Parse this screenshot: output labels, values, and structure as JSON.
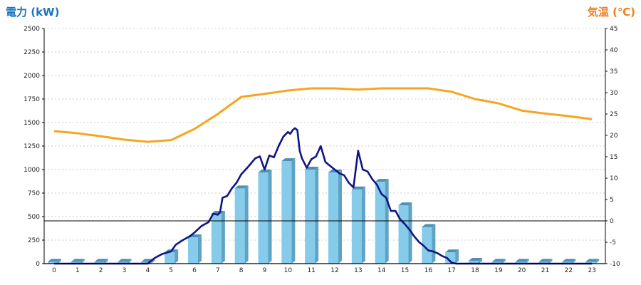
{
  "chart_data": {
    "type": "bar+line",
    "left_axis_title": "電力 (kW)",
    "right_axis_title": "気温 (℃)",
    "title_colors": {
      "left": "#1a75bb",
      "right": "#ef7d1a"
    },
    "x": [
      "0",
      "1",
      "2",
      "3",
      "4",
      "5",
      "6",
      "7",
      "8",
      "9",
      "10",
      "11",
      "12",
      "13",
      "14",
      "15",
      "16",
      "17",
      "18",
      "19",
      "20",
      "21",
      "22",
      "23"
    ],
    "left_ylim": [
      0,
      2500
    ],
    "left_ticks": [
      "0",
      "250",
      "500",
      "750",
      "1000",
      "1250",
      "1500",
      "1750",
      "2000",
      "2250",
      "2500"
    ],
    "right_ylim": [
      -10,
      45
    ],
    "right_ticks": [
      "-10",
      "-5",
      "0",
      "5",
      "10",
      "15",
      "20",
      "25",
      "30",
      "35",
      "40",
      "45"
    ],
    "grid": true,
    "series": [
      {
        "kind": "bar",
        "axis": "left",
        "color": "#86cbea",
        "values": [
          20,
          20,
          20,
          20,
          20,
          120,
          280,
          530,
          800,
          970,
          1090,
          1000,
          970,
          790,
          870,
          620,
          390,
          120,
          30,
          20,
          20,
          20,
          20,
          20
        ]
      },
      {
        "kind": "line",
        "axis": "left",
        "color": "#101585",
        "x": [
          0,
          1,
          2,
          3,
          4,
          4.3,
          4.6,
          5,
          5.2,
          5.5,
          5.8,
          6,
          6.3,
          6.6,
          6.8,
          7,
          7.1,
          7.2,
          7.4,
          7.6,
          7.8,
          8,
          8.3,
          8.6,
          8.8,
          9,
          9.2,
          9.4,
          9.6,
          9.8,
          10,
          10.1,
          10.2,
          10.3,
          10.4,
          10.5,
          10.6,
          10.8,
          11,
          11.2,
          11.4,
          11.6,
          11.8,
          12,
          12.2,
          12.4,
          12.6,
          12.8,
          13,
          13.2,
          13.4,
          13.6,
          13.8,
          14,
          14.2,
          14.4,
          14.6,
          14.8,
          15,
          15.2,
          15.4,
          15.6,
          15.8,
          16,
          16.2,
          16.4,
          16.6,
          16.8,
          17,
          17.2,
          17.4,
          17.6,
          18,
          19,
          20,
          21,
          22,
          23
        ],
        "values": [
          0,
          0,
          0,
          0,
          0,
          60,
          100,
          130,
          200,
          250,
          290,
          330,
          400,
          440,
          530,
          520,
          550,
          700,
          720,
          800,
          860,
          950,
          1030,
          1120,
          1140,
          1000,
          1150,
          1130,
          1250,
          1350,
          1400,
          1380,
          1420,
          1440,
          1420,
          1200,
          1120,
          1020,
          1110,
          1140,
          1250,
          1080,
          1040,
          1000,
          960,
          940,
          860,
          810,
          1200,
          1000,
          980,
          900,
          840,
          740,
          700,
          560,
          560,
          470,
          420,
          360,
          290,
          230,
          190,
          140,
          130,
          110,
          80,
          60,
          10,
          0,
          0,
          0,
          0,
          0,
          0,
          0,
          0,
          0
        ]
      },
      {
        "kind": "line",
        "axis": "right",
        "color": "#f7a520",
        "values": [
          21,
          20.5,
          19.8,
          19,
          18.5,
          18.9,
          21.5,
          25,
          29,
          29.7,
          30.5,
          31,
          31,
          30.7,
          31,
          31,
          31,
          30.2,
          28.5,
          27.5,
          25.8,
          25.1,
          24.5,
          23.8
        ]
      }
    ],
    "reference_line": {
      "axis": "right",
      "value": 0
    },
    "legend": "none"
  }
}
